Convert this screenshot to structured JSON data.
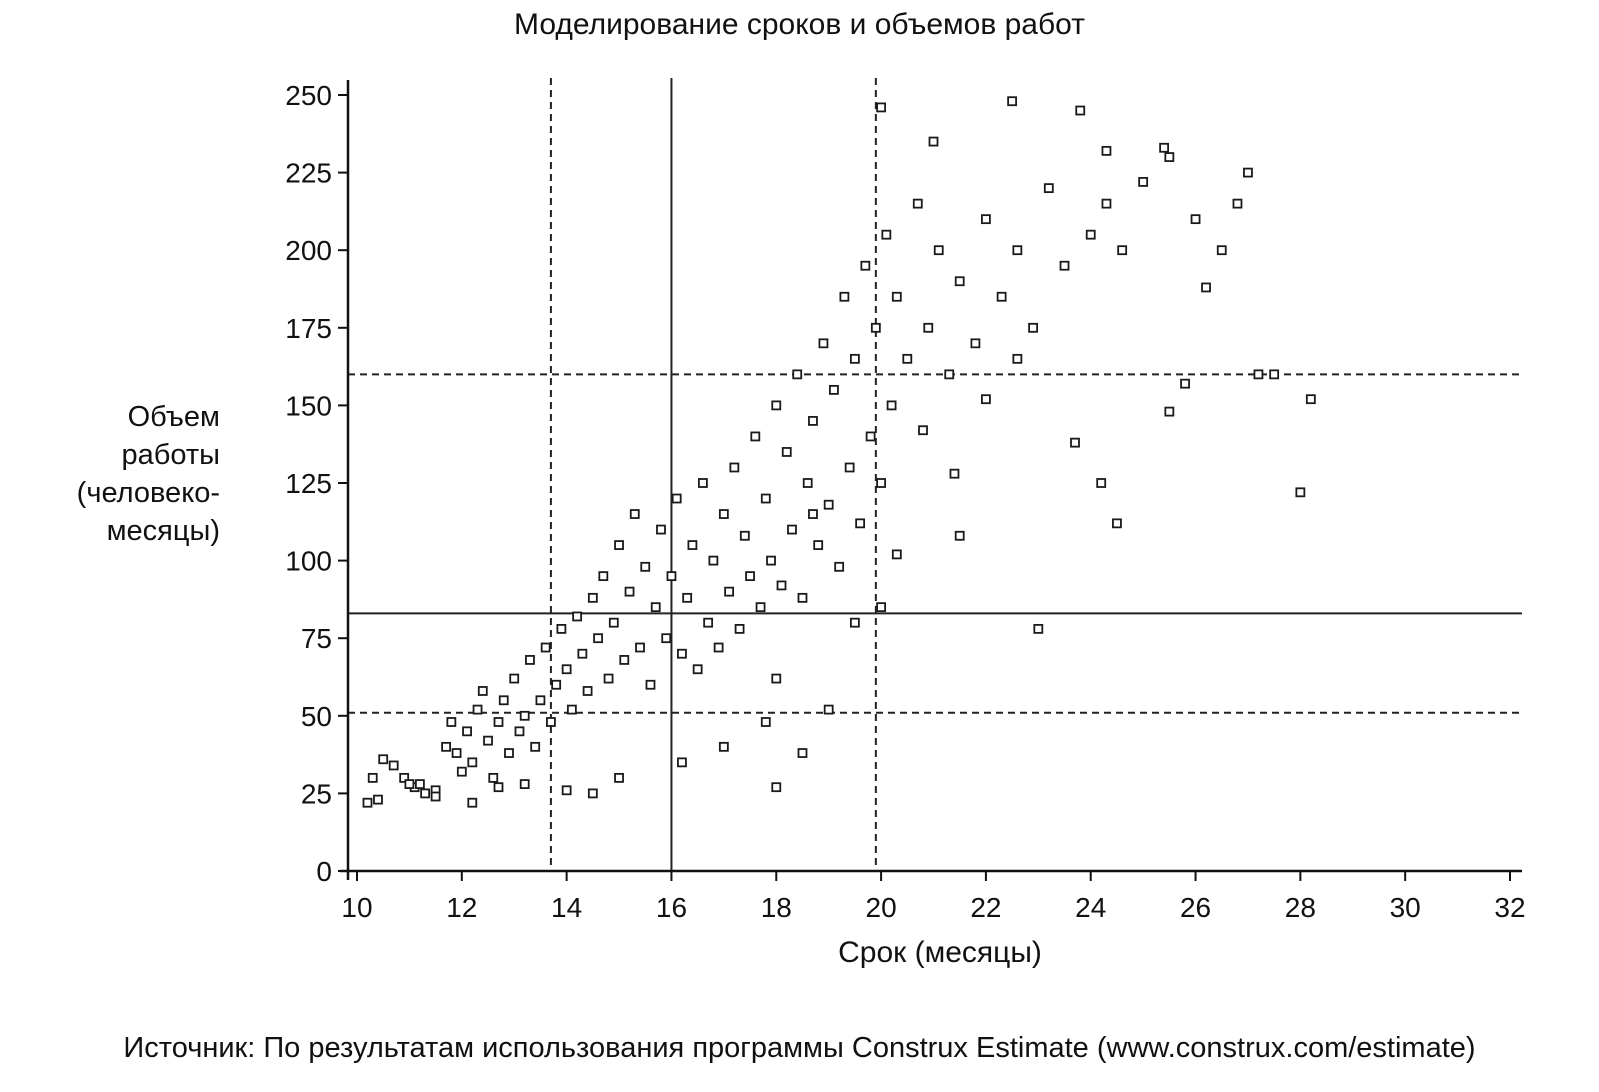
{
  "chart_data": {
    "type": "scatter",
    "title": "Моделирование сроков и объемов работ",
    "xlabel": "Срок (месяцы)",
    "ylabel": "Объем работы (человеко-месяцы)",
    "xlim": [
      10,
      32
    ],
    "ylim": [
      0,
      250
    ],
    "xticks": [
      "10",
      "12",
      "14",
      "16",
      "18",
      "20",
      "22",
      "24",
      "26",
      "28",
      "30",
      "32"
    ],
    "yticks": [
      "0",
      "25",
      "50",
      "75",
      "100",
      "125",
      "150",
      "175",
      "200",
      "225",
      "250"
    ],
    "grid": false,
    "reference_lines": {
      "solid_vertical_x": 16.0,
      "solid_horizontal_y": 83,
      "dashed_vertical_x": [
        13.7,
        19.9
      ],
      "dashed_horizontal_y": [
        51,
        160
      ]
    },
    "series": [
      {
        "points": [
          [
            10.2,
            22
          ],
          [
            10.4,
            23
          ],
          [
            10.3,
            30
          ],
          [
            10.5,
            36
          ],
          [
            10.7,
            34
          ],
          [
            10.9,
            30
          ],
          [
            11.1,
            27
          ],
          [
            11.3,
            25
          ],
          [
            11.0,
            28
          ],
          [
            11.5,
            26
          ],
          [
            11.7,
            40
          ],
          [
            11.8,
            48
          ],
          [
            11.9,
            38
          ],
          [
            12.0,
            32
          ],
          [
            12.1,
            45
          ],
          [
            12.2,
            35
          ],
          [
            12.3,
            52
          ],
          [
            12.4,
            58
          ],
          [
            12.5,
            42
          ],
          [
            12.6,
            30
          ],
          [
            12.7,
            48
          ],
          [
            12.8,
            55
          ],
          [
            12.9,
            38
          ],
          [
            13.0,
            62
          ],
          [
            13.1,
            45
          ],
          [
            13.2,
            50
          ],
          [
            13.3,
            68
          ],
          [
            13.4,
            40
          ],
          [
            13.5,
            55
          ],
          [
            13.6,
            72
          ],
          [
            13.7,
            48
          ],
          [
            13.8,
            60
          ],
          [
            13.9,
            78
          ],
          [
            14.0,
            65
          ],
          [
            14.1,
            52
          ],
          [
            14.2,
            82
          ],
          [
            14.3,
            70
          ],
          [
            14.4,
            58
          ],
          [
            14.5,
            88
          ],
          [
            14.6,
            75
          ],
          [
            14.7,
            95
          ],
          [
            14.8,
            62
          ],
          [
            14.9,
            80
          ],
          [
            15.0,
            105
          ],
          [
            15.1,
            68
          ],
          [
            15.2,
            90
          ],
          [
            15.3,
            115
          ],
          [
            15.4,
            72
          ],
          [
            15.5,
            98
          ],
          [
            15.6,
            60
          ],
          [
            15.7,
            85
          ],
          [
            15.8,
            110
          ],
          [
            15.9,
            75
          ],
          [
            16.0,
            95
          ],
          [
            16.1,
            120
          ],
          [
            16.2,
            70
          ],
          [
            16.3,
            88
          ],
          [
            16.4,
            105
          ],
          [
            16.5,
            65
          ],
          [
            16.6,
            125
          ],
          [
            16.7,
            80
          ],
          [
            16.8,
            100
          ],
          [
            16.9,
            72
          ],
          [
            17.0,
            115
          ],
          [
            17.1,
            90
          ],
          [
            17.2,
            130
          ],
          [
            17.3,
            78
          ],
          [
            17.4,
            108
          ],
          [
            17.5,
            95
          ],
          [
            17.6,
            140
          ],
          [
            17.7,
            85
          ],
          [
            17.8,
            120
          ],
          [
            17.9,
            100
          ],
          [
            18.0,
            150
          ],
          [
            18.1,
            92
          ],
          [
            18.2,
            135
          ],
          [
            18.3,
            110
          ],
          [
            18.4,
            160
          ],
          [
            18.5,
            88
          ],
          [
            18.6,
            125
          ],
          [
            18.7,
            145
          ],
          [
            18.8,
            105
          ],
          [
            18.9,
            170
          ],
          [
            19.0,
            118
          ],
          [
            19.1,
            155
          ],
          [
            19.2,
            98
          ],
          [
            19.3,
            185
          ],
          [
            19.4,
            130
          ],
          [
            19.5,
            165
          ],
          [
            19.6,
            112
          ],
          [
            19.7,
            195
          ],
          [
            19.8,
            140
          ],
          [
            19.9,
            175
          ],
          [
            20.0,
            125
          ],
          [
            20.1,
            205
          ],
          [
            20.2,
            150
          ],
          [
            20.3,
            185
          ],
          [
            20.5,
            165
          ],
          [
            20.7,
            215
          ],
          [
            20.9,
            175
          ],
          [
            21.1,
            200
          ],
          [
            21.3,
            160
          ],
          [
            21.5,
            190
          ],
          [
            21.8,
            170
          ],
          [
            22.0,
            210
          ],
          [
            22.3,
            185
          ],
          [
            22.6,
            200
          ],
          [
            22.9,
            175
          ],
          [
            23.2,
            220
          ],
          [
            23.5,
            195
          ],
          [
            24.0,
            205
          ],
          [
            24.3,
            215
          ],
          [
            24.6,
            200
          ],
          [
            25.0,
            222
          ],
          [
            25.5,
            230
          ],
          [
            26.0,
            210
          ],
          [
            26.5,
            200
          ],
          [
            27.0,
            225
          ],
          [
            27.5,
            160
          ],
          [
            28.2,
            152
          ],
          [
            23.8,
            245
          ],
          [
            22.5,
            248
          ],
          [
            20.0,
            246
          ],
          [
            21.0,
            235
          ],
          [
            24.3,
            232
          ],
          [
            25.4,
            233
          ],
          [
            26.8,
            215
          ],
          [
            27.2,
            160
          ],
          [
            25.8,
            157
          ],
          [
            25.5,
            148
          ],
          [
            20.3,
            102
          ],
          [
            20.0,
            85
          ],
          [
            19.5,
            80
          ],
          [
            18.0,
            62
          ],
          [
            17.8,
            48
          ],
          [
            18.5,
            38
          ],
          [
            18.0,
            27
          ],
          [
            16.2,
            35
          ],
          [
            15.0,
            30
          ],
          [
            14.5,
            25
          ],
          [
            13.2,
            28
          ],
          [
            14.0,
            26
          ],
          [
            12.2,
            22
          ],
          [
            12.7,
            27
          ],
          [
            11.2,
            28
          ],
          [
            11.5,
            24
          ],
          [
            23.0,
            78
          ],
          [
            24.2,
            125
          ],
          [
            24.5,
            112
          ],
          [
            26.2,
            188
          ],
          [
            28.0,
            122
          ],
          [
            22.0,
            152
          ],
          [
            21.5,
            108
          ],
          [
            21.4,
            128
          ],
          [
            20.8,
            142
          ],
          [
            22.6,
            165
          ],
          [
            23.7,
            138
          ],
          [
            18.7,
            115
          ],
          [
            19.0,
            52
          ],
          [
            17.0,
            40
          ]
        ]
      }
    ],
    "marker": "open-square",
    "color": "#1a1a1a"
  },
  "caption": {
    "source": "Источник: По результатам использования программы Construx Estimate (www.construx.com/estimate)"
  }
}
